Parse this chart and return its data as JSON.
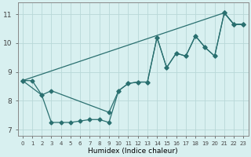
{
  "xlabel": "Humidex (Indice chaleur)",
  "background_color": "#d8f0f0",
  "grid_color": "#b8d8d8",
  "line_color": "#2a7070",
  "xlim": [
    -0.5,
    23.5
  ],
  "ylim": [
    6.8,
    11.4
  ],
  "xticks": [
    0,
    1,
    2,
    3,
    4,
    5,
    6,
    7,
    8,
    9,
    10,
    11,
    12,
    13,
    14,
    15,
    16,
    17,
    18,
    19,
    20,
    21,
    22,
    23
  ],
  "yticks": [
    7,
    8,
    9,
    10,
    11
  ],
  "line1_x": [
    0,
    21,
    22,
    23
  ],
  "line1_y": [
    8.7,
    11.05,
    10.65,
    10.65
  ],
  "line2_x": [
    0,
    1,
    2,
    3,
    9,
    10,
    11,
    12,
    13,
    14,
    15,
    16,
    17,
    18,
    19,
    20,
    21,
    22,
    23
  ],
  "line2_y": [
    8.7,
    8.7,
    8.2,
    8.35,
    7.6,
    8.35,
    8.6,
    8.65,
    8.65,
    10.2,
    9.15,
    9.65,
    9.55,
    10.25,
    9.85,
    9.55,
    11.05,
    10.65,
    10.65
  ],
  "line3_x": [
    0,
    2,
    3,
    4,
    5,
    6,
    7,
    8,
    9,
    10,
    11,
    12,
    13,
    14,
    15,
    16,
    17,
    18,
    19,
    20,
    21,
    22,
    23
  ],
  "line3_y": [
    8.7,
    8.2,
    7.25,
    7.25,
    7.25,
    7.3,
    7.35,
    7.35,
    7.25,
    8.35,
    8.6,
    8.65,
    8.65,
    10.2,
    9.15,
    9.65,
    9.55,
    10.25,
    9.85,
    9.55,
    11.05,
    10.65,
    10.65
  ]
}
